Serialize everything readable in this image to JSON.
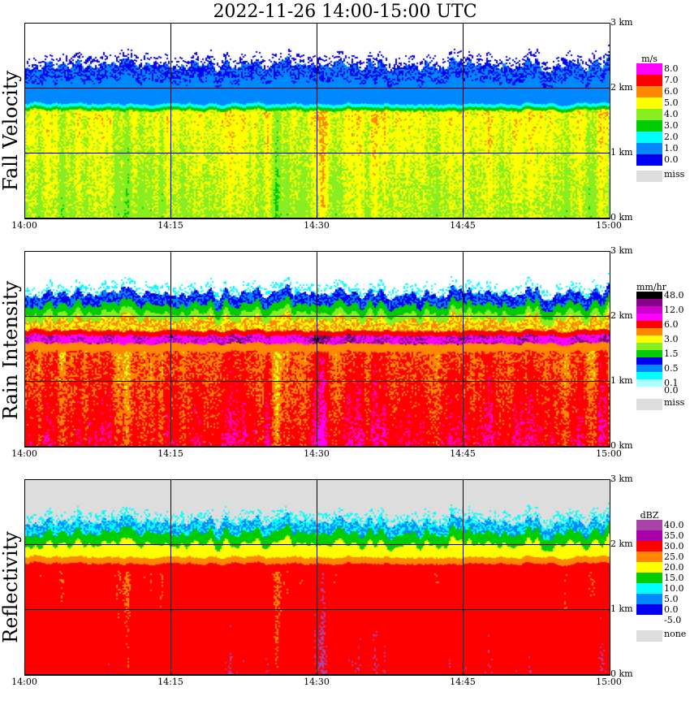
{
  "title": "2022-11-26   14:00-15:00 UTC",
  "time_labels": [
    "14:00",
    "14:15",
    "14:30",
    "14:45",
    "15:00"
  ],
  "height_labels": [
    "3 km",
    "2 km",
    "1 km",
    "0 km"
  ],
  "chart_data": [
    {
      "type": "heatmap",
      "title": "Fall Velocity",
      "x_range": [
        "14:00",
        "15:00"
      ],
      "y_range_km": [
        0,
        3.1
      ],
      "legend": {
        "unit": "m/s",
        "levels": [
          {
            "label": "8.0",
            "color": "#ff00ff"
          },
          {
            "label": "7.0",
            "color": "#ff0000"
          },
          {
            "label": "6.0",
            "color": "#ff8800"
          },
          {
            "label": "5.0",
            "color": "#ffff00"
          },
          {
            "label": "4.0",
            "color": "#88ee22"
          },
          {
            "label": "3.0",
            "color": "#00cc00"
          },
          {
            "label": "2.0",
            "color": "#00ffff"
          },
          {
            "label": "1.0",
            "color": "#0088ff"
          },
          {
            "label": "0.0",
            "color": "#0000ee"
          }
        ],
        "missing": {
          "label": "miss",
          "color": "#dddddd"
        }
      }
    },
    {
      "type": "heatmap",
      "title": "Rain Intensity",
      "x_range": [
        "14:00",
        "15:00"
      ],
      "y_range_km": [
        0,
        3.1
      ],
      "legend": {
        "unit": "mm/hr",
        "levels": [
          {
            "label": "48.0",
            "color": "#000000"
          },
          {
            "label": "",
            "color": "#880088"
          },
          {
            "label": "12.0",
            "color": "#cc00cc"
          },
          {
            "label": "",
            "color": "#ff00ff"
          },
          {
            "label": "6.0",
            "color": "#ff0000"
          },
          {
            "label": "",
            "color": "#ff8800"
          },
          {
            "label": "3.0",
            "color": "#ffff00"
          },
          {
            "label": "",
            "color": "#88ee22"
          },
          {
            "label": "1.5",
            "color": "#00cc00"
          },
          {
            "label": "",
            "color": "#0000ee"
          },
          {
            "label": "0.5",
            "color": "#0088ff"
          },
          {
            "label": "",
            "color": "#00ffff"
          },
          {
            "label": "0.1",
            "color": "#aaffff"
          },
          {
            "label": "0.0",
            "color": "#ffffff"
          }
        ],
        "missing": {
          "label": "miss",
          "color": "#dddddd"
        }
      }
    },
    {
      "type": "heatmap",
      "title": "Reflectivity",
      "x_range": [
        "14:00",
        "15:00"
      ],
      "y_range_km": [
        0,
        3.1
      ],
      "legend": {
        "unit": "dBZ",
        "levels": [
          {
            "label": "40.0",
            "color": "#aa44aa"
          },
          {
            "label": "35.0",
            "color": "#aa00aa"
          },
          {
            "label": "30.0",
            "color": "#ff0000"
          },
          {
            "label": "25.0",
            "color": "#ff8800"
          },
          {
            "label": "20.0",
            "color": "#ffff00"
          },
          {
            "label": "15.0",
            "color": "#00cc00"
          },
          {
            "label": "10.0",
            "color": "#00ffff"
          },
          {
            "label": "5.0",
            "color": "#0088ff"
          },
          {
            "label": "0.0",
            "color": "#0000ee"
          },
          {
            "label": "-5.0",
            "color": "#ffffff"
          }
        ],
        "missing": {
          "label": "none",
          "color": "#dddddd"
        }
      }
    }
  ]
}
